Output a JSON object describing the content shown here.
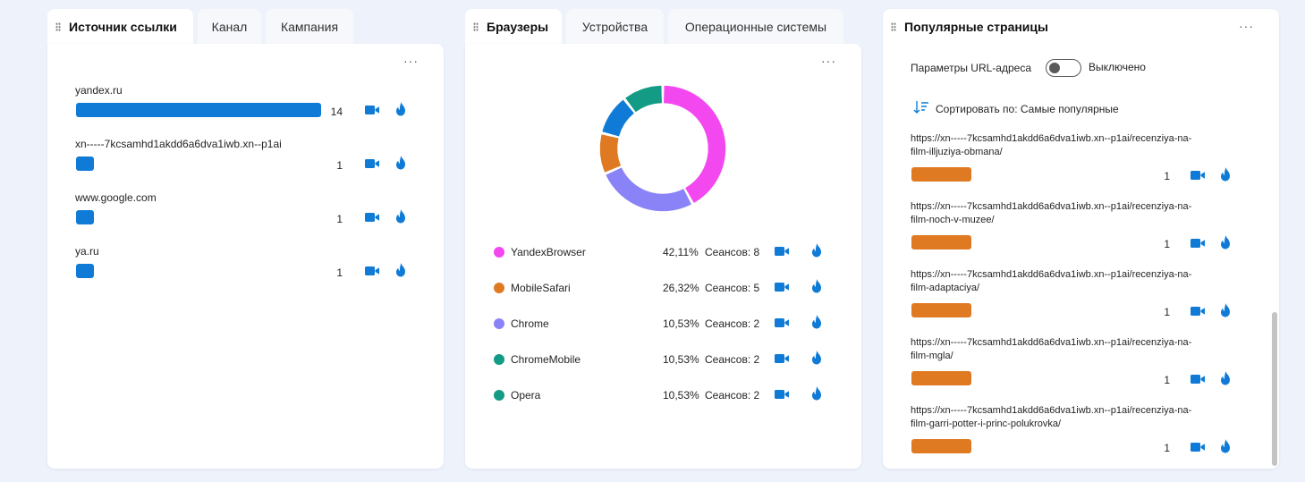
{
  "colors": {
    "accent_blue": "#0f7bd6",
    "bar_orange": "#e07a22",
    "yandex": "#f347f0",
    "mobilesafari": "#e07a22",
    "chrome": "#8a83f7",
    "chromemobile": "#139b85",
    "opera": "#139b85"
  },
  "icons": {
    "recording": "video-camera-icon",
    "heatmap": "flame-icon",
    "sort": "sort-descending-icon",
    "grip": "drag-grip-icon",
    "more": "more-horizontal-icon"
  },
  "referrers": {
    "tabs": [
      "Источник ссылки",
      "Канал",
      "Кампания"
    ],
    "more": "···",
    "items": [
      {
        "label": "yandex.ru",
        "count": "14",
        "value": 14
      },
      {
        "label": "xn-----7kcsamhd1akdd6a6dva1iwb.xn--p1ai",
        "count": "1",
        "value": 1
      },
      {
        "label": "www.google.com",
        "count": "1",
        "value": 1
      },
      {
        "label": "ya.ru",
        "count": "1",
        "value": 1
      }
    ]
  },
  "browsers": {
    "tabs": [
      "Браузеры",
      "Устройства",
      "Операционные системы"
    ],
    "more": "···",
    "items": [
      {
        "name": "YandexBrowser",
        "percent": "42,11%",
        "sessions": "Сеансов: 8",
        "value": 8,
        "color": "#f347f0"
      },
      {
        "name": "MobileSafari",
        "percent": "26,32%",
        "sessions": "Сеансов: 5",
        "value": 5,
        "color": "#8a83f7"
      },
      {
        "name": "Chrome",
        "percent": "10,53%",
        "sessions": "Сеансов: 2",
        "value": 2,
        "color": "#e07a22"
      },
      {
        "name": "ChromeMobile",
        "percent": "10,53%",
        "sessions": "Сеансов: 2",
        "value": 2,
        "color": "#0f7bd6"
      },
      {
        "name": "Opera",
        "percent": "10,53%",
        "sessions": "Сеансов: 2",
        "value": 2,
        "color": "#139b85"
      }
    ],
    "legend_colors": [
      "#f347f0",
      "#e07a22",
      "#8a83f7",
      "#139b85",
      "#139b85"
    ]
  },
  "pages": {
    "title": "Популярные страницы",
    "more": "···",
    "url_params_label": "Параметры URL-адреса",
    "url_params_state": "Выключено",
    "sort_label": "Сортировать по: Самые популярные",
    "items": [
      {
        "line1": "https://xn-----7kcsamhd1akdd6a6dva1iwb.xn--p1ai/recenziya-na-",
        "line2": "film-illjuziya-obmana/",
        "count": "1"
      },
      {
        "line1": "https://xn-----7kcsamhd1akdd6a6dva1iwb.xn--p1ai/recenziya-na-",
        "line2": "film-noch-v-muzee/",
        "count": "1"
      },
      {
        "line1": "https://xn-----7kcsamhd1akdd6a6dva1iwb.xn--p1ai/recenziya-na-",
        "line2": "film-adaptaciya/",
        "count": "1"
      },
      {
        "line1": "https://xn-----7kcsamhd1akdd6a6dva1iwb.xn--p1ai/recenziya-na-",
        "line2": "film-mgla/",
        "count": "1"
      },
      {
        "line1": "https://xn-----7kcsamhd1akdd6a6dva1iwb.xn--p1ai/recenziya-na-",
        "line2": "film-garri-potter-i-princ-polukrovka/",
        "count": "1"
      }
    ]
  }
}
